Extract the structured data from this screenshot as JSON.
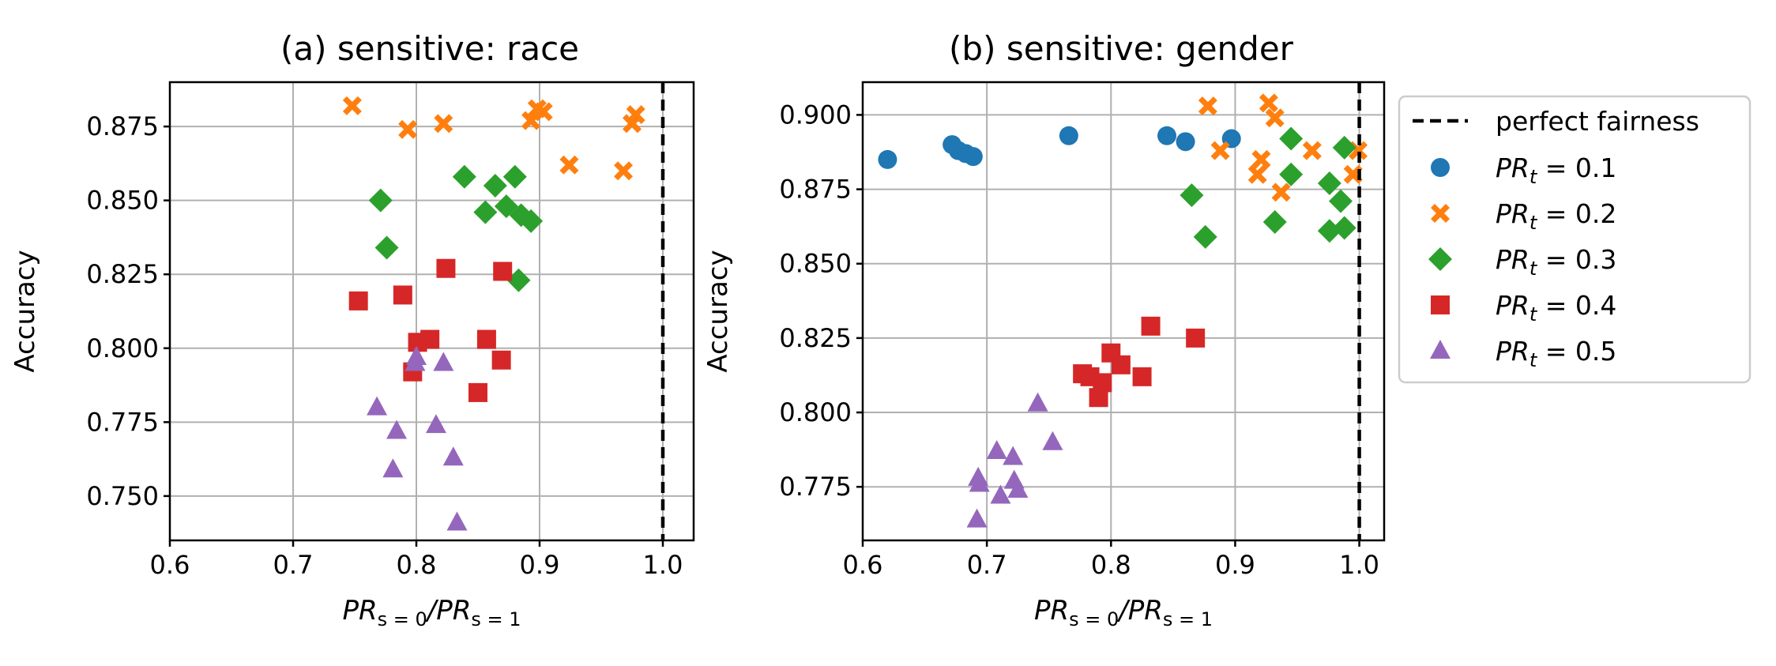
{
  "colors": {
    "PR_0.1": "#1f77b4",
    "PR_0.2": "#ff7f0e",
    "PR_0.3": "#2ca02c",
    "PR_0.4": "#d62728",
    "PR_0.5": "#9467bd"
  },
  "legend": {
    "fairness_label": "perfect fairness",
    "entries": [
      {
        "key": "PR_0.1",
        "marker": "circle",
        "label_prefix": "PR",
        "label_sub": "t",
        "label_value": " = 0.1"
      },
      {
        "key": "PR_0.2",
        "marker": "x",
        "label_prefix": "PR",
        "label_sub": "t",
        "label_value": " = 0.2"
      },
      {
        "key": "PR_0.3",
        "marker": "diamond",
        "label_prefix": "PR",
        "label_sub": "t",
        "label_value": " = 0.3"
      },
      {
        "key": "PR_0.4",
        "marker": "square",
        "label_prefix": "PR",
        "label_sub": "t",
        "label_value": " = 0.4"
      },
      {
        "key": "PR_0.5",
        "marker": "triangle",
        "label_prefix": "PR",
        "label_sub": "t",
        "label_value": " = 0.5"
      }
    ]
  },
  "chart_data": [
    {
      "type": "scatter",
      "title": "(a) sensitive: race",
      "ylabel": "Accuracy",
      "xlabel": {
        "prefix": "PR",
        "sub1": "s = 0",
        "mid": "/PR",
        "sub2": "s = 1"
      },
      "xlim": [
        0.6,
        1.025
      ],
      "ylim": [
        0.735,
        0.89
      ],
      "xticks": [
        "0.6",
        "0.7",
        "0.8",
        "0.9",
        "1.0"
      ],
      "yticks": [
        "0.750",
        "0.775",
        "0.800",
        "0.825",
        "0.850",
        "0.875"
      ],
      "grid": true,
      "perfect_fairness_x": 1.0,
      "series": [
        {
          "key": "PR_0.2",
          "marker": "x",
          "points": [
            [
              0.748,
              0.882
            ],
            [
              0.793,
              0.874
            ],
            [
              0.822,
              0.876
            ],
            [
              0.893,
              0.877
            ],
            [
              0.898,
              0.881
            ],
            [
              0.903,
              0.88
            ],
            [
              0.924,
              0.862
            ],
            [
              0.968,
              0.86
            ],
            [
              0.975,
              0.876
            ],
            [
              0.978,
              0.879
            ]
          ]
        },
        {
          "key": "PR_0.3",
          "marker": "diamond",
          "points": [
            [
              0.771,
              0.85
            ],
            [
              0.776,
              0.834
            ],
            [
              0.839,
              0.858
            ],
            [
              0.856,
              0.846
            ],
            [
              0.864,
              0.855
            ],
            [
              0.873,
              0.848
            ],
            [
              0.88,
              0.858
            ],
            [
              0.885,
              0.845
            ],
            [
              0.893,
              0.843
            ],
            [
              0.883,
              0.823
            ]
          ]
        },
        {
          "key": "PR_0.4",
          "marker": "square",
          "points": [
            [
              0.753,
              0.816
            ],
            [
              0.789,
              0.818
            ],
            [
              0.824,
              0.827
            ],
            [
              0.87,
              0.826
            ],
            [
              0.801,
              0.802
            ],
            [
              0.811,
              0.803
            ],
            [
              0.857,
              0.803
            ],
            [
              0.869,
              0.796
            ],
            [
              0.797,
              0.792
            ],
            [
              0.85,
              0.785
            ]
          ]
        },
        {
          "key": "PR_0.5",
          "marker": "triangle",
          "points": [
            [
              0.799,
              0.795
            ],
            [
              0.822,
              0.795
            ],
            [
              0.768,
              0.78
            ],
            [
              0.784,
              0.772
            ],
            [
              0.816,
              0.774
            ],
            [
              0.781,
              0.759
            ],
            [
              0.83,
              0.763
            ],
            [
              0.833,
              0.741
            ],
            [
              0.8,
              0.797
            ]
          ]
        }
      ]
    },
    {
      "type": "scatter",
      "title": "(b) sensitive: gender",
      "ylabel": "Accuracy",
      "xlabel": {
        "prefix": "PR",
        "sub1": "s = 0",
        "mid": "/PR",
        "sub2": "s = 1"
      },
      "xlim": [
        0.6,
        1.02
      ],
      "ylim": [
        0.757,
        0.911
      ],
      "xticks": [
        "0.6",
        "0.7",
        "0.8",
        "0.9",
        "1.0"
      ],
      "yticks": [
        "0.775",
        "0.800",
        "0.825",
        "0.850",
        "0.875",
        "0.900"
      ],
      "grid": true,
      "perfect_fairness_x": 1.0,
      "series": [
        {
          "key": "PR_0.1",
          "marker": "circle",
          "points": [
            [
              0.62,
              0.885
            ],
            [
              0.672,
              0.89
            ],
            [
              0.677,
              0.888
            ],
            [
              0.683,
              0.887
            ],
            [
              0.689,
              0.886
            ],
            [
              0.766,
              0.893
            ],
            [
              0.845,
              0.893
            ],
            [
              0.86,
              0.891
            ],
            [
              0.897,
              0.892
            ]
          ]
        },
        {
          "key": "PR_0.2",
          "marker": "x",
          "points": [
            [
              0.878,
              0.903
            ],
            [
              0.927,
              0.904
            ],
            [
              0.932,
              0.899
            ],
            [
              0.888,
              0.888
            ],
            [
              0.921,
              0.885
            ],
            [
              0.918,
              0.88
            ],
            [
              0.937,
              0.874
            ],
            [
              0.962,
              0.888
            ],
            [
              0.999,
              0.888
            ],
            [
              0.995,
              0.88
            ]
          ]
        },
        {
          "key": "PR_0.3",
          "marker": "diamond",
          "points": [
            [
              0.945,
              0.892
            ],
            [
              0.988,
              0.889
            ],
            [
              0.945,
              0.88
            ],
            [
              0.976,
              0.877
            ],
            [
              0.865,
              0.873
            ],
            [
              0.985,
              0.871
            ],
            [
              0.932,
              0.864
            ],
            [
              0.876,
              0.859
            ],
            [
              0.976,
              0.861
            ],
            [
              0.988,
              0.862
            ]
          ]
        },
        {
          "key": "PR_0.4",
          "marker": "square",
          "points": [
            [
              0.832,
              0.829
            ],
            [
              0.868,
              0.825
            ],
            [
              0.8,
              0.82
            ],
            [
              0.808,
              0.816
            ],
            [
              0.777,
              0.813
            ],
            [
              0.825,
              0.812
            ],
            [
              0.793,
              0.81
            ],
            [
              0.79,
              0.805
            ],
            [
              0.783,
              0.812
            ]
          ]
        },
        {
          "key": "PR_0.5",
          "marker": "triangle",
          "points": [
            [
              0.741,
              0.803
            ],
            [
              0.753,
              0.79
            ],
            [
              0.708,
              0.787
            ],
            [
              0.721,
              0.785
            ],
            [
              0.693,
              0.778
            ],
            [
              0.722,
              0.777
            ],
            [
              0.694,
              0.776
            ],
            [
              0.725,
              0.774
            ],
            [
              0.711,
              0.772
            ],
            [
              0.692,
              0.764
            ]
          ]
        }
      ]
    }
  ]
}
